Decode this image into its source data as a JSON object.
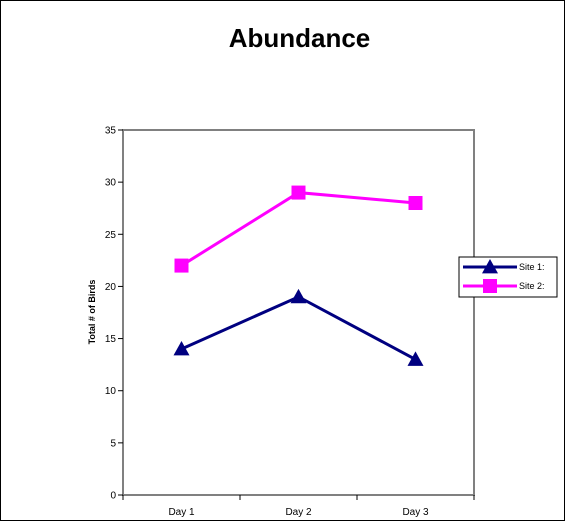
{
  "chart_data": {
    "type": "line",
    "title": "Abundance",
    "xlabel": "",
    "ylabel": "Total # of Birds",
    "categories": [
      "Day 1",
      "Day 2",
      "Day 3"
    ],
    "ylim": [
      0,
      35
    ],
    "yticks": [
      0,
      5,
      10,
      15,
      20,
      25,
      30,
      35
    ],
    "grid": false,
    "legend_position": "right",
    "series": [
      {
        "name": "Site 1:",
        "values": [
          14,
          19,
          13
        ],
        "color": "#000080",
        "marker": "triangle"
      },
      {
        "name": "Site 2:",
        "values": [
          22,
          29,
          28
        ],
        "color": "#FF00FF",
        "marker": "square"
      }
    ]
  }
}
